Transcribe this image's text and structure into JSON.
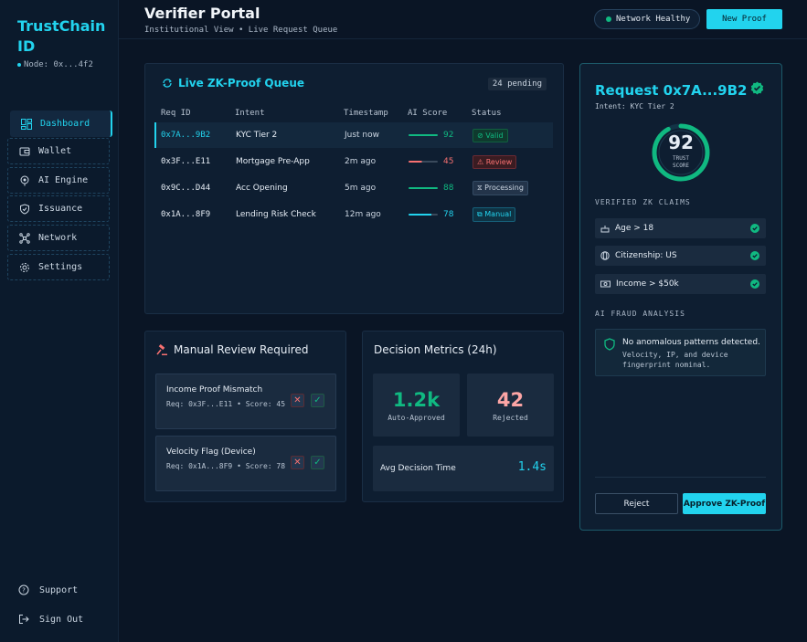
{
  "brand": {
    "name": "TrustChain ID",
    "node": "Node: 0x...4f2"
  },
  "nav": {
    "items": [
      {
        "label": "Dashboard",
        "icon": "dashboard-icon",
        "active": true
      },
      {
        "label": "Wallet",
        "icon": "wallet-icon"
      },
      {
        "label": "AI Engine",
        "icon": "ai-engine-icon"
      },
      {
        "label": "Issuance",
        "icon": "shield-icon"
      },
      {
        "label": "Network",
        "icon": "network-icon"
      },
      {
        "label": "Settings",
        "icon": "gear-icon"
      }
    ],
    "support": "Support",
    "signout": "Sign Out"
  },
  "header": {
    "title": "Verifier Portal",
    "subtitle": "Institutional View • Live Request Queue",
    "health": "Network Healthy",
    "new_proof": "New Proof"
  },
  "queue": {
    "title": "Live ZK-Proof Queue",
    "pending": "24 pending",
    "columns": [
      "Req ID",
      "Intent",
      "Timestamp",
      "AI Score",
      "Status"
    ],
    "rows": [
      {
        "id": "0x7A...9B2",
        "intent": "KYC Tier 2",
        "time": "Just now",
        "score": "92",
        "score_color": "#10b981",
        "status": "Valid",
        "status_color": "#10b981"
      },
      {
        "id": "0x3F...E11",
        "intent": "Mortgage Pre-App",
        "time": "2m ago",
        "score": "45",
        "score_color": "#f87171",
        "status": "Review",
        "status_color": "#f87171"
      },
      {
        "id": "0x9C...D44",
        "intent": "Acc Opening",
        "time": "5m ago",
        "score": "88",
        "score_color": "#10b981",
        "status": "Processing",
        "status_color": "#cbd5e1"
      },
      {
        "id": "0x1A...8F9",
        "intent": "Lending Risk Check",
        "time": "12m ago",
        "score": "78",
        "score_color": "#22d3ee",
        "status": "Manual",
        "status_color": "#22d3ee"
      }
    ]
  },
  "manual_review": {
    "title": "Manual Review Required",
    "items": [
      {
        "title": "Income Proof Mismatch",
        "sub": "Req: 0x3F...E11 • Score: 45"
      },
      {
        "title": "Velocity Flag (Device)",
        "sub": "Req: 0x1A...8F9 • Score: 78"
      }
    ]
  },
  "metrics": {
    "title": "Decision Metrics (24h)",
    "approved_value": "1.2k",
    "approved_label": "Auto-Approved",
    "rejected_value": "42",
    "rejected_label": "Rejected",
    "avg_label": "Avg Decision Time",
    "avg_value": "1.4s"
  },
  "request": {
    "title": "Request 0x7A...9B2",
    "intent": "Intent: KYC Tier 2",
    "trust_score": "92",
    "trust_label": "TRUST SCORE",
    "claims_heading": "VERIFIED ZK CLAIMS",
    "claims": [
      {
        "label": "Age > 18",
        "icon": "cake-icon"
      },
      {
        "label": "Citizenship: US",
        "icon": "globe-icon"
      },
      {
        "label": "Income > $50k",
        "icon": "money-icon"
      }
    ],
    "fraud_heading": "AI FRAUD ANALYSIS",
    "fraud_title": "No anomalous patterns detected.",
    "fraud_sub": "Velocity, IP, and device fingerprint nominal.",
    "reject": "Reject",
    "approve": "Approve ZK-Proof"
  }
}
